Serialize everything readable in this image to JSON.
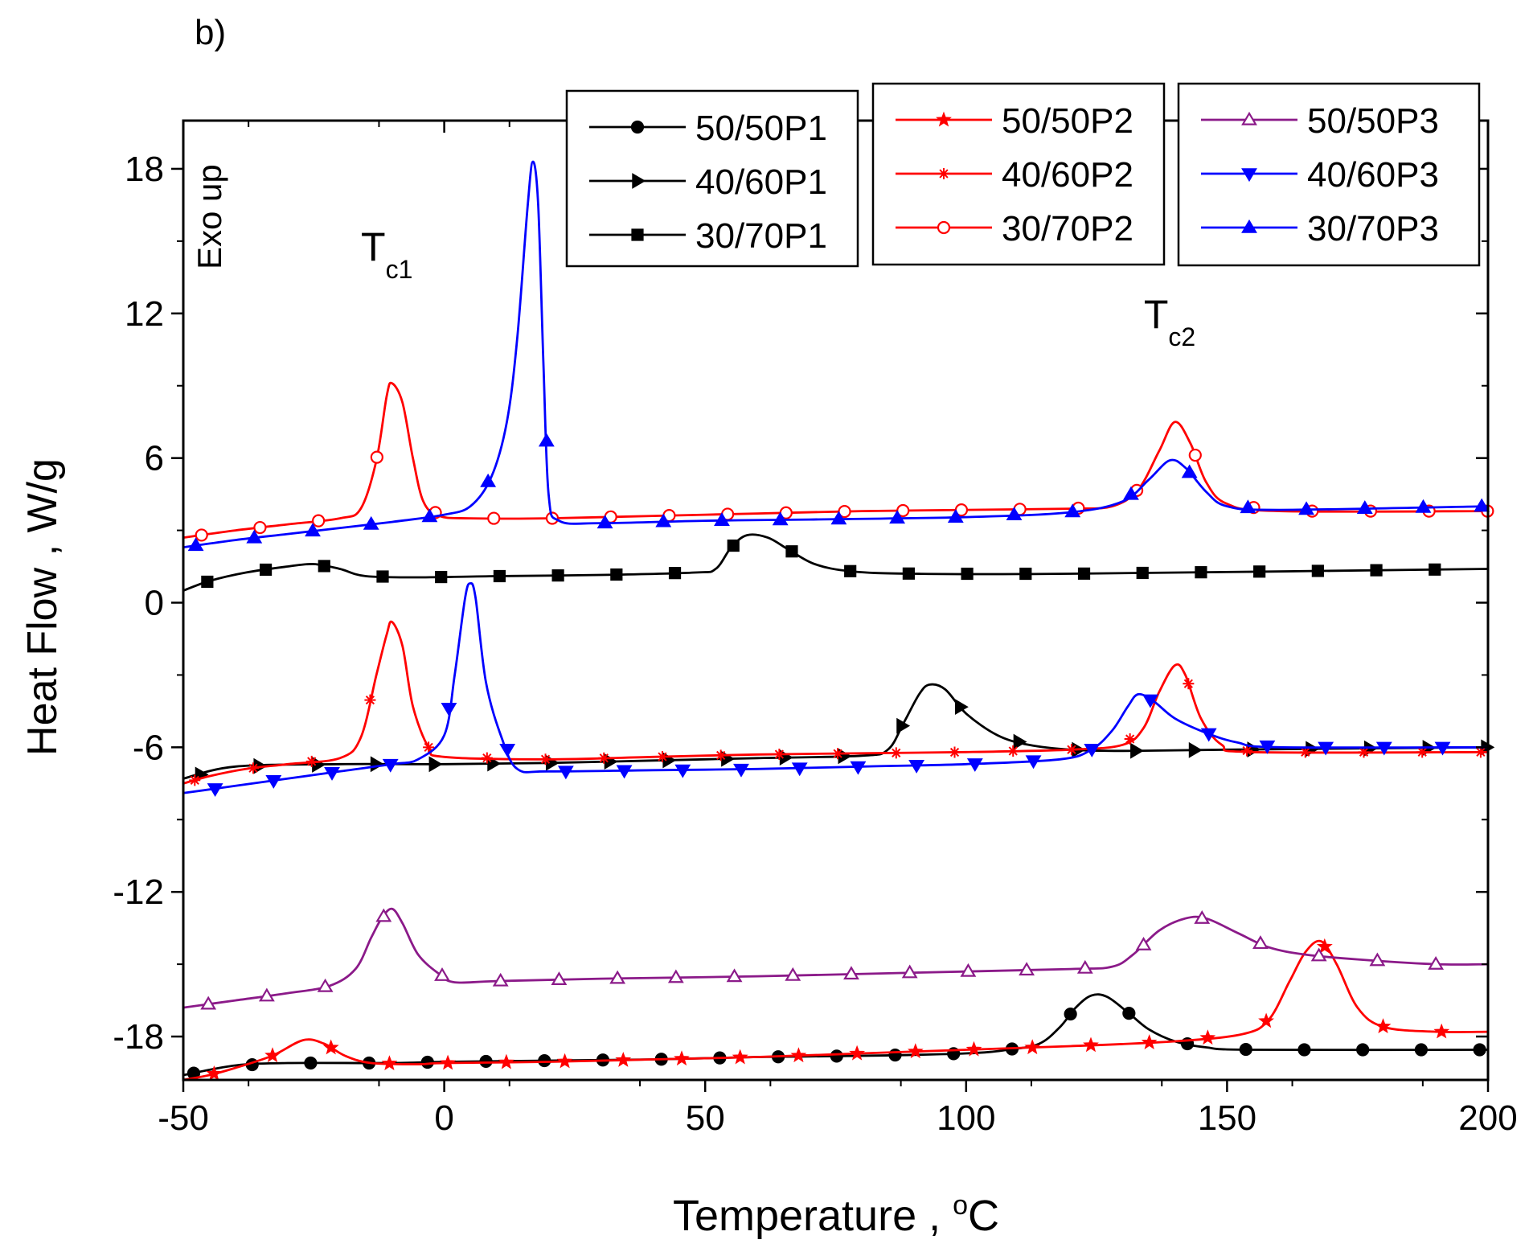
{
  "chart_data": {
    "type": "line",
    "panel_label": "b)",
    "title": "",
    "xlabel": "Temperature , ",
    "xlabel_unit": "C",
    "xlabel_unit_sup": "o",
    "ylabel": "Heat Flow , W/g",
    "xlim": [
      -50,
      200
    ],
    "ylim": [
      -19.8,
      20
    ],
    "xticks": [
      -50,
      0,
      50,
      100,
      150,
      200
    ],
    "yticks": [
      -18,
      -12,
      -6,
      0,
      6,
      12,
      18
    ],
    "exo_label": "Exo up",
    "annotations": [
      {
        "main": "T",
        "sub": "c1",
        "x": -11,
        "y": 14.2
      },
      {
        "main": "T",
        "sub": "c2",
        "x": 139,
        "y": 11.4
      }
    ],
    "series": [
      {
        "name": "50/50P1",
        "color": "#000000",
        "marker": "circle",
        "fill": true,
        "points": [
          [
            -50,
            -19.6
          ],
          [
            -40,
            -19.2
          ],
          [
            -30,
            -19.1
          ],
          [
            -10,
            -19.1
          ],
          [
            0,
            -19.05
          ],
          [
            20,
            -19.0
          ],
          [
            40,
            -18.95
          ],
          [
            60,
            -18.85
          ],
          [
            80,
            -18.8
          ],
          [
            100,
            -18.7
          ],
          [
            108,
            -18.55
          ],
          [
            114,
            -18.3
          ],
          [
            118,
            -17.6
          ],
          [
            121,
            -16.8
          ],
          [
            124,
            -16.3
          ],
          [
            127,
            -16.35
          ],
          [
            131,
            -17.0
          ],
          [
            135,
            -17.7
          ],
          [
            140,
            -18.2
          ],
          [
            146,
            -18.45
          ],
          [
            155,
            -18.55
          ],
          [
            200,
            -18.55
          ]
        ]
      },
      {
        "name": "40/60P1",
        "color": "#000000",
        "marker": "triangle-right",
        "fill": true,
        "points": [
          [
            -50,
            -7.3
          ],
          [
            -40,
            -6.8
          ],
          [
            -20,
            -6.7
          ],
          [
            0,
            -6.7
          ],
          [
            20,
            -6.65
          ],
          [
            40,
            -6.55
          ],
          [
            60,
            -6.45
          ],
          [
            80,
            -6.35
          ],
          [
            85,
            -6.1
          ],
          [
            88,
            -5.0
          ],
          [
            91,
            -3.8
          ],
          [
            93,
            -3.4
          ],
          [
            96,
            -3.6
          ],
          [
            100,
            -4.6
          ],
          [
            106,
            -5.5
          ],
          [
            112,
            -5.9
          ],
          [
            120,
            -6.1
          ],
          [
            130,
            -6.15
          ],
          [
            150,
            -6.1
          ],
          [
            200,
            -6.0
          ]
        ]
      },
      {
        "name": "30/70P1",
        "color": "#000000",
        "marker": "square",
        "fill": true,
        "points": [
          [
            -50,
            0.5
          ],
          [
            -45,
            0.9
          ],
          [
            -38,
            1.25
          ],
          [
            -30,
            1.5
          ],
          [
            -25,
            1.6
          ],
          [
            -20,
            1.4
          ],
          [
            -15,
            1.1
          ],
          [
            -5,
            1.05
          ],
          [
            10,
            1.1
          ],
          [
            30,
            1.15
          ],
          [
            48,
            1.25
          ],
          [
            52,
            1.4
          ],
          [
            55,
            2.3
          ],
          [
            58,
            2.8
          ],
          [
            62,
            2.7
          ],
          [
            66,
            2.2
          ],
          [
            71,
            1.6
          ],
          [
            78,
            1.3
          ],
          [
            90,
            1.2
          ],
          [
            120,
            1.2
          ],
          [
            200,
            1.4
          ]
        ]
      },
      {
        "name": "50/50P2",
        "color": "#ff0000",
        "marker": "star",
        "fill": true,
        "points": [
          [
            -50,
            -19.8
          ],
          [
            -45,
            -19.6
          ],
          [
            -40,
            -19.3
          ],
          [
            -33,
            -18.8
          ],
          [
            -27,
            -18.15
          ],
          [
            -23,
            -18.3
          ],
          [
            -19,
            -18.8
          ],
          [
            -14,
            -19.1
          ],
          [
            -5,
            -19.15
          ],
          [
            0,
            -19.1
          ],
          [
            20,
            -19.05
          ],
          [
            40,
            -18.95
          ],
          [
            60,
            -18.85
          ],
          [
            80,
            -18.7
          ],
          [
            100,
            -18.55
          ],
          [
            120,
            -18.4
          ],
          [
            140,
            -18.2
          ],
          [
            153,
            -17.9
          ],
          [
            158,
            -17.3
          ],
          [
            162,
            -15.7
          ],
          [
            165,
            -14.5
          ],
          [
            168,
            -14.05
          ],
          [
            171,
            -15.0
          ],
          [
            175,
            -16.8
          ],
          [
            180,
            -17.6
          ],
          [
            190,
            -17.8
          ],
          [
            200,
            -17.8
          ]
        ]
      },
      {
        "name": "40/60P2",
        "color": "#ff0000",
        "marker": "asterisk",
        "fill": false,
        "points": [
          [
            -50,
            -7.5
          ],
          [
            -45,
            -7.2
          ],
          [
            -38,
            -6.9
          ],
          [
            -30,
            -6.7
          ],
          [
            -20,
            -6.45
          ],
          [
            -16,
            -5.6
          ],
          [
            -13,
            -3.0
          ],
          [
            -11,
            -1.3
          ],
          [
            -10,
            -0.8
          ],
          [
            -8,
            -1.8
          ],
          [
            -6,
            -4.3
          ],
          [
            -3,
            -6.0
          ],
          [
            0,
            -6.4
          ],
          [
            20,
            -6.5
          ],
          [
            40,
            -6.4
          ],
          [
            60,
            -6.3
          ],
          [
            80,
            -6.25
          ],
          [
            100,
            -6.2
          ],
          [
            120,
            -6.1
          ],
          [
            130,
            -5.9
          ],
          [
            134,
            -5.2
          ],
          [
            137,
            -3.7
          ],
          [
            140,
            -2.6
          ],
          [
            142,
            -3.0
          ],
          [
            145,
            -4.8
          ],
          [
            149,
            -5.9
          ],
          [
            155,
            -6.2
          ],
          [
            200,
            -6.2
          ]
        ]
      },
      {
        "name": "30/70P2",
        "color": "#ff0000",
        "marker": "circle",
        "fill": false,
        "points": [
          [
            -50,
            2.7
          ],
          [
            -40,
            3.0
          ],
          [
            -30,
            3.25
          ],
          [
            -20,
            3.5
          ],
          [
            -16,
            3.9
          ],
          [
            -13,
            5.9
          ],
          [
            -11,
            8.6
          ],
          [
            -10,
            9.1
          ],
          [
            -8,
            8.3
          ],
          [
            -6,
            6.0
          ],
          [
            -4,
            4.2
          ],
          [
            -1,
            3.6
          ],
          [
            5,
            3.5
          ],
          [
            20,
            3.5
          ],
          [
            40,
            3.6
          ],
          [
            60,
            3.7
          ],
          [
            80,
            3.8
          ],
          [
            100,
            3.85
          ],
          [
            120,
            3.9
          ],
          [
            128,
            4.0
          ],
          [
            133,
            4.7
          ],
          [
            137,
            6.3
          ],
          [
            140,
            7.5
          ],
          [
            143,
            6.6
          ],
          [
            146,
            5.0
          ],
          [
            150,
            4.1
          ],
          [
            160,
            3.8
          ],
          [
            200,
            3.8
          ]
        ]
      },
      {
        "name": "50/50P3",
        "color": "#8b1a89",
        "marker": "triangle-up",
        "fill": false,
        "points": [
          [
            -50,
            -16.8
          ],
          [
            -40,
            -16.5
          ],
          [
            -30,
            -16.2
          ],
          [
            -22,
            -15.9
          ],
          [
            -17,
            -15.2
          ],
          [
            -14,
            -13.9
          ],
          [
            -12,
            -13.1
          ],
          [
            -10,
            -12.7
          ],
          [
            -8,
            -13.3
          ],
          [
            -5,
            -14.6
          ],
          [
            -1,
            -15.4
          ],
          [
            2,
            -15.75
          ],
          [
            10,
            -15.7
          ],
          [
            30,
            -15.6
          ],
          [
            60,
            -15.5
          ],
          [
            90,
            -15.35
          ],
          [
            120,
            -15.2
          ],
          [
            128,
            -15.1
          ],
          [
            132,
            -14.6
          ],
          [
            137,
            -13.6
          ],
          [
            142,
            -13.1
          ],
          [
            146,
            -13.1
          ],
          [
            152,
            -13.7
          ],
          [
            158,
            -14.3
          ],
          [
            165,
            -14.6
          ],
          [
            175,
            -14.8
          ],
          [
            190,
            -15.0
          ],
          [
            200,
            -15.0
          ]
        ]
      },
      {
        "name": "40/60P3",
        "color": "#0000ff",
        "marker": "triangle-down",
        "fill": true,
        "points": [
          [
            -50,
            -7.9
          ],
          [
            -40,
            -7.6
          ],
          [
            -30,
            -7.3
          ],
          [
            -20,
            -7.0
          ],
          [
            -10,
            -6.7
          ],
          [
            -5,
            -6.5
          ],
          [
            0,
            -5.5
          ],
          [
            2,
            -3.0
          ],
          [
            4,
            0.2
          ],
          [
            5,
            0.8
          ],
          [
            6,
            0.2
          ],
          [
            8,
            -3.3
          ],
          [
            11,
            -5.6
          ],
          [
            14,
            -6.9
          ],
          [
            20,
            -7.0
          ],
          [
            40,
            -6.95
          ],
          [
            60,
            -6.9
          ],
          [
            80,
            -6.8
          ],
          [
            100,
            -6.7
          ],
          [
            118,
            -6.5
          ],
          [
            124,
            -6.1
          ],
          [
            128,
            -5.3
          ],
          [
            131,
            -4.3
          ],
          [
            133,
            -3.8
          ],
          [
            136,
            -4.1
          ],
          [
            140,
            -4.8
          ],
          [
            146,
            -5.4
          ],
          [
            152,
            -5.8
          ],
          [
            160,
            -6.0
          ],
          [
            200,
            -6.0
          ]
        ]
      },
      {
        "name": "30/70P3",
        "color": "#0000ff",
        "marker": "triangle-up",
        "fill": true,
        "points": [
          [
            -50,
            2.3
          ],
          [
            -40,
            2.6
          ],
          [
            -30,
            2.85
          ],
          [
            -20,
            3.1
          ],
          [
            -10,
            3.35
          ],
          [
            0,
            3.65
          ],
          [
            5,
            4.0
          ],
          [
            9,
            5.2
          ],
          [
            12,
            7.5
          ],
          [
            14,
            11.0
          ],
          [
            16,
            16.5
          ],
          [
            17,
            18.3
          ],
          [
            18,
            16.5
          ],
          [
            19,
            10.0
          ],
          [
            20,
            4.5
          ],
          [
            22,
            3.4
          ],
          [
            30,
            3.3
          ],
          [
            50,
            3.4
          ],
          [
            70,
            3.45
          ],
          [
            100,
            3.55
          ],
          [
            120,
            3.75
          ],
          [
            130,
            4.2
          ],
          [
            135,
            5.1
          ],
          [
            139,
            5.9
          ],
          [
            142,
            5.6
          ],
          [
            146,
            4.6
          ],
          [
            150,
            4.0
          ],
          [
            160,
            3.85
          ],
          [
            200,
            4.0
          ]
        ]
      }
    ]
  }
}
